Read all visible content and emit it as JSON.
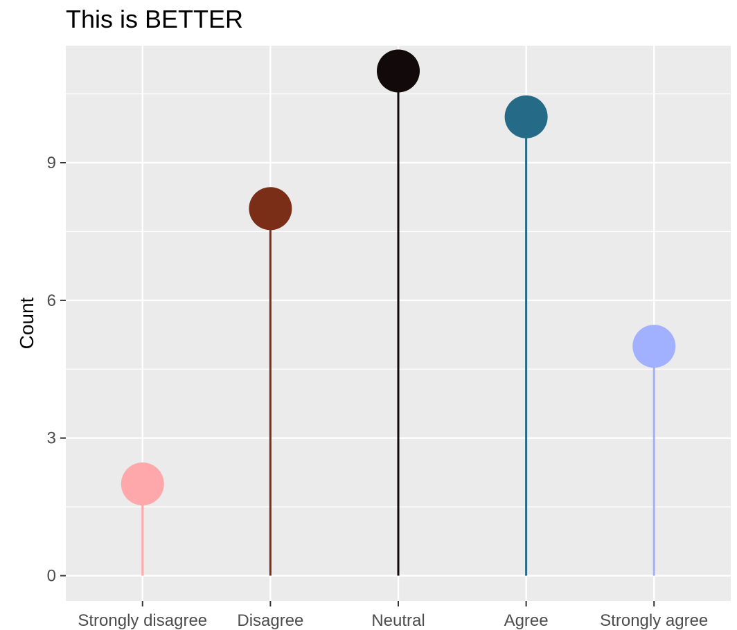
{
  "chart_data": {
    "type": "lollipop",
    "title": "This is BETTER",
    "xlabel": "",
    "ylabel": "Count",
    "categories": [
      "Strongly disagree",
      "Disagree",
      "Neutral",
      "Agree",
      "Strongly agree"
    ],
    "values": [
      2,
      8,
      11,
      10,
      5
    ],
    "colors": [
      "#ffa8ab",
      "#7a2e17",
      "#120a0a",
      "#256b88",
      "#a1b0ff"
    ],
    "ylim": [
      -0.55,
      11.55
    ],
    "yticks": [
      0,
      3,
      6,
      9
    ],
    "panel_background": "#ebebeb",
    "grid": true,
    "legend": "none"
  }
}
